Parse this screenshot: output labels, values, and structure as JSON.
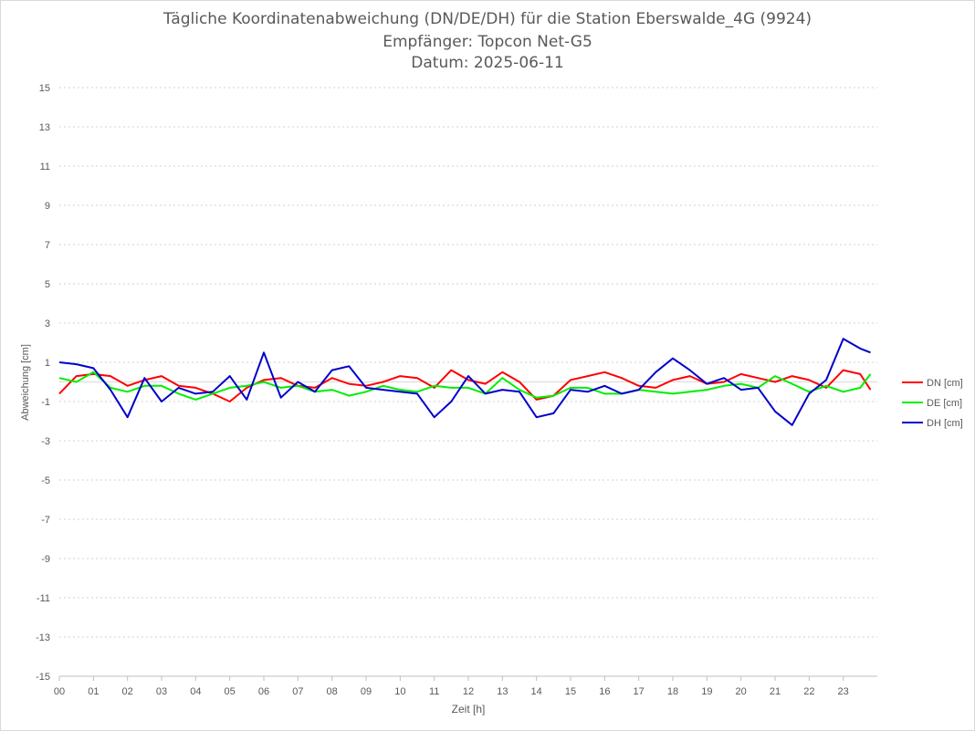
{
  "chart_data": {
    "type": "line",
    "title": "Tägliche Koordinatenabweichung (DN/DE/DH) für die Station Eberswalde_4G (9924)",
    "subtitle": "Empfänger: Topcon Net-G5",
    "subtitle2": "Datum: 2025-06-11",
    "xlabel": "Zeit [h]",
    "ylabel": "Abweichung [cm]",
    "xlim": [
      0,
      24
    ],
    "ylim": [
      -15,
      15
    ],
    "x_ticks": [
      "00",
      "01",
      "02",
      "03",
      "04",
      "05",
      "06",
      "07",
      "08",
      "09",
      "10",
      "11",
      "12",
      "13",
      "14",
      "15",
      "16",
      "17",
      "18",
      "19",
      "20",
      "21",
      "22",
      "23"
    ],
    "y_ticks": [
      15,
      13,
      11,
      9,
      7,
      5,
      3,
      1,
      -1,
      -3,
      -5,
      -7,
      -9,
      -11,
      -13,
      -15
    ],
    "grid": "horizontal dotted",
    "legend_position": "right",
    "series": [
      {
        "name": "DN [cm]",
        "color": "#ff0000",
        "x": [
          0,
          0.5,
          1,
          1.5,
          2,
          2.5,
          3,
          3.5,
          4,
          4.5,
          5,
          5.5,
          6,
          6.5,
          7,
          7.5,
          8,
          8.5,
          9,
          9.5,
          10,
          10.5,
          11,
          11.5,
          12,
          12.5,
          13,
          13.5,
          14,
          14.5,
          15,
          15.5,
          16,
          16.5,
          17,
          17.5,
          18,
          18.5,
          19,
          19.5,
          20,
          20.5,
          21,
          21.5,
          22,
          22.5,
          23,
          23.5,
          23.8
        ],
        "values": [
          -0.6,
          0.3,
          0.4,
          0.3,
          -0.2,
          0.1,
          0.3,
          -0.2,
          -0.3,
          -0.6,
          -1.0,
          -0.3,
          0.1,
          0.2,
          -0.2,
          -0.3,
          0.2,
          -0.1,
          -0.2,
          0.0,
          0.3,
          0.2,
          -0.3,
          0.6,
          0.1,
          -0.1,
          0.5,
          0.0,
          -0.9,
          -0.7,
          0.1,
          0.3,
          0.5,
          0.2,
          -0.2,
          -0.3,
          0.1,
          0.3,
          -0.1,
          0.0,
          0.4,
          0.2,
          0.0,
          0.3,
          0.1,
          -0.3,
          0.6,
          0.4,
          -0.4
        ]
      },
      {
        "name": "DE [cm]",
        "color": "#00ee00",
        "x": [
          0,
          0.5,
          1,
          1.5,
          2,
          2.5,
          3,
          3.5,
          4,
          4.5,
          5,
          5.5,
          6,
          6.5,
          7,
          7.5,
          8,
          8.5,
          9,
          9.5,
          10,
          10.5,
          11,
          11.5,
          12,
          12.5,
          13,
          13.5,
          14,
          14.5,
          15,
          15.5,
          16,
          16.5,
          17,
          17.5,
          18,
          18.5,
          19,
          19.5,
          20,
          20.5,
          21,
          21.5,
          22,
          22.5,
          23,
          23.5,
          23.8
        ],
        "values": [
          0.2,
          0.0,
          0.5,
          -0.3,
          -0.5,
          -0.2,
          -0.2,
          -0.6,
          -0.9,
          -0.6,
          -0.3,
          -0.2,
          0.0,
          -0.3,
          -0.2,
          -0.5,
          -0.4,
          -0.7,
          -0.5,
          -0.2,
          -0.4,
          -0.5,
          -0.2,
          -0.3,
          -0.3,
          -0.6,
          0.2,
          -0.4,
          -0.8,
          -0.7,
          -0.3,
          -0.3,
          -0.6,
          -0.6,
          -0.4,
          -0.5,
          -0.6,
          -0.5,
          -0.4,
          -0.2,
          -0.1,
          -0.3,
          0.3,
          -0.1,
          -0.5,
          -0.2,
          -0.5,
          -0.3,
          0.4
        ]
      },
      {
        "name": "DH [cm]",
        "color": "#0000cc",
        "x": [
          0,
          0.5,
          1,
          1.5,
          2,
          2.5,
          3,
          3.5,
          4,
          4.5,
          5,
          5.5,
          6,
          6.5,
          7,
          7.5,
          8,
          8.5,
          9,
          9.5,
          10,
          10.5,
          11,
          11.5,
          12,
          12.5,
          13,
          13.5,
          14,
          14.5,
          15,
          15.5,
          16,
          16.5,
          17,
          17.5,
          18,
          18.5,
          19,
          19.5,
          20,
          20.5,
          21,
          21.5,
          22,
          22.5,
          23,
          23.5,
          23.8
        ],
        "values": [
          1.0,
          0.9,
          0.7,
          -0.4,
          -1.8,
          0.2,
          -1.0,
          -0.3,
          -0.6,
          -0.5,
          0.3,
          -0.9,
          1.5,
          -0.8,
          0.0,
          -0.5,
          0.6,
          0.8,
          -0.3,
          -0.4,
          -0.5,
          -0.6,
          -1.8,
          -1.0,
          0.3,
          -0.6,
          -0.4,
          -0.5,
          -1.8,
          -1.6,
          -0.4,
          -0.5,
          -0.2,
          -0.6,
          -0.4,
          0.5,
          1.2,
          0.6,
          -0.1,
          0.2,
          -0.4,
          -0.3,
          -1.5,
          -2.2,
          -0.6,
          0.1,
          2.2,
          1.7,
          1.5
        ]
      }
    ]
  }
}
